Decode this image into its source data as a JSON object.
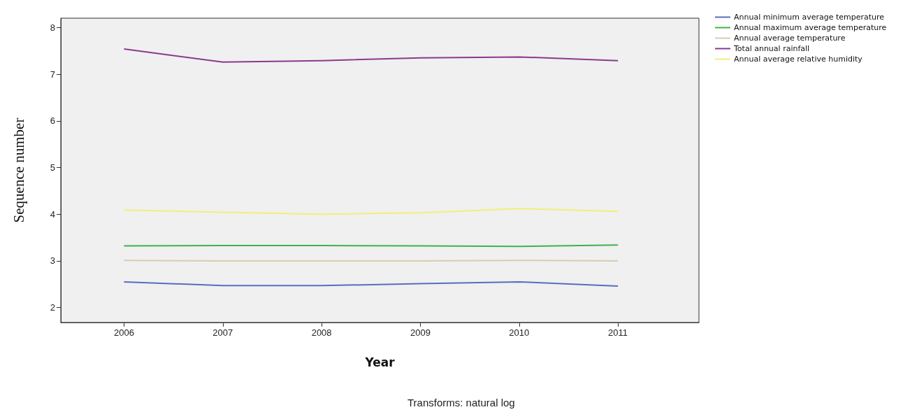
{
  "chart_data": {
    "type": "line",
    "xlabel": "Year",
    "ylabel": "Sequence number",
    "annotations": [
      "Transforms: natural log"
    ],
    "x": [
      2006,
      2007,
      2008,
      2009,
      2010,
      2011
    ],
    "xlim": [
      2005.36,
      2011.82
    ],
    "xticks": [
      2006,
      2007,
      2008,
      2009,
      2010,
      2011
    ],
    "ylim": [
      1.68,
      8.2
    ],
    "yticks": [
      2,
      3,
      4,
      5,
      6,
      7,
      8
    ],
    "grid": false,
    "legend": "top right",
    "marker": "none",
    "line_style": "solid",
    "series": [
      {
        "name": "Annual minimum average temperature",
        "color": "#5a6cc0",
        "values": [
          2.55,
          2.47,
          2.47,
          2.51,
          2.55,
          2.46
        ]
      },
      {
        "name": "Annual maximum average temperature",
        "color": "#3cb44b",
        "values": [
          3.32,
          3.33,
          3.33,
          3.32,
          3.31,
          3.34
        ]
      },
      {
        "name": "Annual average temperature",
        "color": "#d9ccb0",
        "values": [
          3.01,
          3.0,
          3.0,
          3.0,
          3.01,
          3.0
        ]
      },
      {
        "name": "Total annual rainfall",
        "color": "#8b3a8b",
        "values": [
          7.54,
          7.26,
          7.29,
          7.35,
          7.37,
          7.29
        ]
      },
      {
        "name": "Annual average relative humidity",
        "color": "#f2ee7a",
        "values": [
          4.09,
          4.04,
          4.0,
          4.03,
          4.12,
          4.06
        ]
      }
    ]
  }
}
